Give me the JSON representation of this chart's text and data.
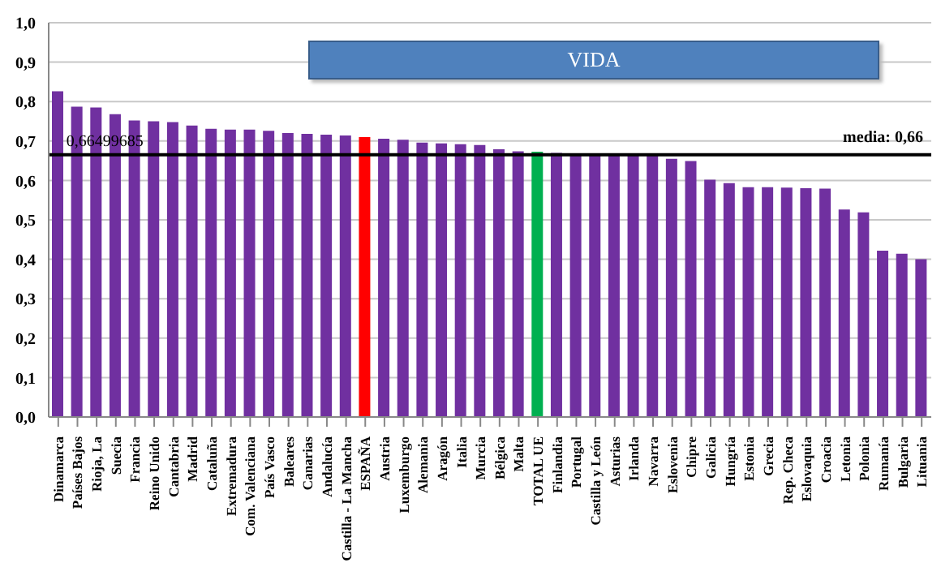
{
  "chart_data": {
    "type": "bar",
    "title": "VIDA",
    "categories": [
      "Dinamarca",
      "Países Bajos",
      "Rioja, La",
      "Suecia",
      "Francia",
      "Reino Unido",
      "Cantabria",
      "Madrid",
      "Cataluña",
      "Extremadura",
      "Com. Valenciana",
      "País Vasco",
      "Baleares",
      "Canarias",
      "Andalucía",
      "Castilla - La Mancha",
      "ESPAÑA",
      "Austria",
      "Luxemburgo",
      "Alemania",
      "Aragón",
      "Italia",
      "Murcia",
      "Bélgica",
      "Malta",
      "TOTAL UE",
      "Finlandia",
      "Portugal",
      "Castilla y León",
      "Asturias",
      "Irlanda",
      "Navarra",
      "Eslovenia",
      "Chipre",
      "Galicia",
      "Hungría",
      "Estonia",
      "Grecia",
      "Rep. Checa",
      "Eslovaquia",
      "Croacia",
      "Letonia",
      "Polonia",
      "Rumanía",
      "Bulgaria",
      "Lituania"
    ],
    "values": [
      0.826,
      0.787,
      0.785,
      0.768,
      0.752,
      0.75,
      0.748,
      0.739,
      0.731,
      0.729,
      0.729,
      0.726,
      0.72,
      0.718,
      0.716,
      0.714,
      0.71,
      0.706,
      0.703,
      0.696,
      0.694,
      0.692,
      0.69,
      0.679,
      0.674,
      0.673,
      0.67,
      0.665,
      0.665,
      0.665,
      0.665,
      0.665,
      0.655,
      0.649,
      0.602,
      0.593,
      0.583,
      0.583,
      0.582,
      0.58,
      0.579,
      0.526,
      0.519,
      0.422,
      0.414,
      0.4
    ],
    "colors": [
      "#7030a0",
      "#7030a0",
      "#7030a0",
      "#7030a0",
      "#7030a0",
      "#7030a0",
      "#7030a0",
      "#7030a0",
      "#7030a0",
      "#7030a0",
      "#7030a0",
      "#7030a0",
      "#7030a0",
      "#7030a0",
      "#7030a0",
      "#7030a0",
      "#ff0000",
      "#7030a0",
      "#7030a0",
      "#7030a0",
      "#7030a0",
      "#7030a0",
      "#7030a0",
      "#7030a0",
      "#7030a0",
      "#00b050",
      "#7030a0",
      "#7030a0",
      "#7030a0",
      "#7030a0",
      "#7030a0",
      "#7030a0",
      "#7030a0",
      "#7030a0",
      "#7030a0",
      "#7030a0",
      "#7030a0",
      "#7030a0",
      "#7030a0",
      "#7030a0",
      "#7030a0",
      "#7030a0",
      "#7030a0",
      "#7030a0",
      "#7030a0",
      "#7030a0"
    ],
    "ylim": [
      0,
      1
    ],
    "yticks": [
      {
        "value": 0,
        "label": "0,0"
      },
      {
        "value": 0.1,
        "label": "0,1"
      },
      {
        "value": 0.2,
        "label": "0,2"
      },
      {
        "value": 0.3,
        "label": "0,3"
      },
      {
        "value": 0.4,
        "label": "0,4"
      },
      {
        "value": 0.5,
        "label": "0,5"
      },
      {
        "value": 0.6,
        "label": "0,6"
      },
      {
        "value": 0.7,
        "label": "0,7"
      },
      {
        "value": 0.8,
        "label": "0,8"
      },
      {
        "value": 0.9,
        "label": "0,9"
      },
      {
        "value": 1,
        "label": "1,0"
      }
    ],
    "grid": "y",
    "ref_lines": [
      {
        "axis": "y",
        "value": 0.665,
        "label": "media: 0,66",
        "color": "#000000"
      }
    ],
    "annotations": [
      {
        "text": "0,66499685",
        "x": "Dinamarca",
        "y": 0.665
      }
    ]
  }
}
